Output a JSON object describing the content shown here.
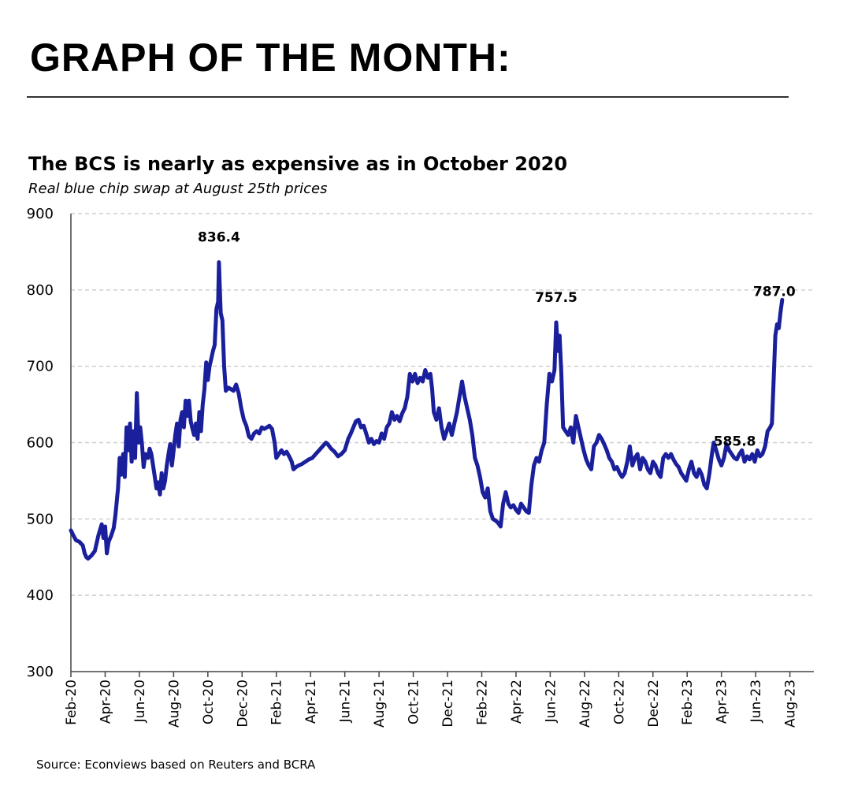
{
  "header": {
    "headline": "GRAPH OF THE MONTH:"
  },
  "chart_data": {
    "type": "line",
    "title": "The BCS is nearly as expensive as in October 2020",
    "subtitle": "Real blue chip swap at August 25th prices",
    "source": "Source: Econviews based on Reuters and BCRA",
    "xlabel": "",
    "ylabel": "",
    "ylim": [
      300,
      900
    ],
    "y_ticks": [
      300,
      400,
      500,
      600,
      700,
      800,
      900
    ],
    "x_tick_labels": [
      "Feb-20",
      "Apr-20",
      "Jun-20",
      "Aug-20",
      "Oct-20",
      "Dec-20",
      "Feb-21",
      "Apr-21",
      "Jun-21",
      "Aug-21",
      "Oct-21",
      "Dec-21",
      "Feb-22",
      "Apr-22",
      "Jun-22",
      "Aug-22",
      "Oct-22",
      "Dec-22",
      "Feb-23",
      "Apr-23",
      "Jun-23",
      "Aug-23"
    ],
    "x_range_months": [
      0,
      43.4
    ],
    "grid": "horizontal dashed",
    "series": [
      {
        "name": "Real blue chip swap",
        "color": "#1a1f9c",
        "points": [
          [
            0.0,
            485
          ],
          [
            0.15,
            478
          ],
          [
            0.3,
            472
          ],
          [
            0.5,
            470
          ],
          [
            0.7,
            465
          ],
          [
            0.8,
            455
          ],
          [
            0.9,
            450
          ],
          [
            1.0,
            448
          ],
          [
            1.2,
            452
          ],
          [
            1.4,
            458
          ],
          [
            1.6,
            478
          ],
          [
            1.8,
            493
          ],
          [
            1.9,
            475
          ],
          [
            2.0,
            490
          ],
          [
            2.1,
            455
          ],
          [
            2.2,
            470
          ],
          [
            2.35,
            478
          ],
          [
            2.5,
            488
          ],
          [
            2.6,
            505
          ],
          [
            2.75,
            540
          ],
          [
            2.85,
            580
          ],
          [
            2.95,
            558
          ],
          [
            3.05,
            585
          ],
          [
            3.15,
            555
          ],
          [
            3.25,
            620
          ],
          [
            3.35,
            590
          ],
          [
            3.45,
            625
          ],
          [
            3.55,
            575
          ],
          [
            3.65,
            615
          ],
          [
            3.75,
            580
          ],
          [
            3.85,
            665
          ],
          [
            3.95,
            600
          ],
          [
            4.05,
            620
          ],
          [
            4.15,
            598
          ],
          [
            4.25,
            568
          ],
          [
            4.35,
            585
          ],
          [
            4.5,
            580
          ],
          [
            4.6,
            592
          ],
          [
            4.7,
            585
          ],
          [
            4.8,
            570
          ],
          [
            4.9,
            555
          ],
          [
            5.0,
            540
          ],
          [
            5.1,
            548
          ],
          [
            5.2,
            532
          ],
          [
            5.3,
            560
          ],
          [
            5.4,
            540
          ],
          [
            5.5,
            550
          ],
          [
            5.6,
            570
          ],
          [
            5.7,
            585
          ],
          [
            5.8,
            598
          ],
          [
            5.9,
            570
          ],
          [
            6.0,
            590
          ],
          [
            6.1,
            610
          ],
          [
            6.2,
            625
          ],
          [
            6.3,
            595
          ],
          [
            6.4,
            630
          ],
          [
            6.5,
            640
          ],
          [
            6.6,
            620
          ],
          [
            6.7,
            655
          ],
          [
            6.8,
            635
          ],
          [
            6.9,
            655
          ],
          [
            7.0,
            628
          ],
          [
            7.1,
            618
          ],
          [
            7.2,
            610
          ],
          [
            7.3,
            625
          ],
          [
            7.4,
            605
          ],
          [
            7.5,
            640
          ],
          [
            7.6,
            615
          ],
          [
            7.7,
            650
          ],
          [
            7.8,
            670
          ],
          [
            7.9,
            705
          ],
          [
            8.0,
            682
          ],
          [
            8.1,
            700
          ],
          [
            8.2,
            710
          ],
          [
            8.3,
            720
          ],
          [
            8.4,
            728
          ],
          [
            8.5,
            775
          ],
          [
            8.6,
            785
          ],
          [
            8.65,
            836.4
          ],
          [
            8.75,
            770
          ],
          [
            8.85,
            760
          ],
          [
            8.95,
            700
          ],
          [
            9.05,
            668
          ],
          [
            9.2,
            672
          ],
          [
            9.35,
            670
          ],
          [
            9.5,
            668
          ],
          [
            9.65,
            676
          ],
          [
            9.8,
            665
          ],
          [
            9.95,
            645
          ],
          [
            10.1,
            630
          ],
          [
            10.25,
            622
          ],
          [
            10.4,
            608
          ],
          [
            10.55,
            605
          ],
          [
            10.7,
            612
          ],
          [
            10.85,
            615
          ],
          [
            11.0,
            612
          ],
          [
            11.15,
            620
          ],
          [
            11.3,
            618
          ],
          [
            11.45,
            620
          ],
          [
            11.6,
            622
          ],
          [
            11.75,
            618
          ],
          [
            11.9,
            600
          ],
          [
            12.0,
            580
          ],
          [
            12.15,
            585
          ],
          [
            12.3,
            590
          ],
          [
            12.45,
            585
          ],
          [
            12.6,
            588
          ],
          [
            12.75,
            582
          ],
          [
            12.9,
            575
          ],
          [
            13.0,
            565
          ],
          [
            13.15,
            568
          ],
          [
            13.3,
            570
          ],
          [
            13.5,
            572
          ],
          [
            13.7,
            575
          ],
          [
            13.9,
            578
          ],
          [
            14.1,
            580
          ],
          [
            14.3,
            585
          ],
          [
            14.5,
            590
          ],
          [
            14.7,
            595
          ],
          [
            14.9,
            600
          ],
          [
            15.0,
            598
          ],
          [
            15.2,
            592
          ],
          [
            15.4,
            588
          ],
          [
            15.6,
            582
          ],
          [
            15.8,
            585
          ],
          [
            16.0,
            590
          ],
          [
            16.2,
            605
          ],
          [
            16.35,
            612
          ],
          [
            16.5,
            620
          ],
          [
            16.65,
            628
          ],
          [
            16.8,
            630
          ],
          [
            16.95,
            620
          ],
          [
            17.1,
            622
          ],
          [
            17.25,
            612
          ],
          [
            17.4,
            600
          ],
          [
            17.55,
            605
          ],
          [
            17.7,
            598
          ],
          [
            17.85,
            602
          ],
          [
            18.0,
            600
          ],
          [
            18.15,
            612
          ],
          [
            18.3,
            605
          ],
          [
            18.45,
            620
          ],
          [
            18.6,
            625
          ],
          [
            18.75,
            640
          ],
          [
            18.9,
            630
          ],
          [
            19.05,
            635
          ],
          [
            19.2,
            628
          ],
          [
            19.35,
            638
          ],
          [
            19.5,
            645
          ],
          [
            19.65,
            660
          ],
          [
            19.8,
            690
          ],
          [
            19.95,
            680
          ],
          [
            20.1,
            690
          ],
          [
            20.25,
            678
          ],
          [
            20.4,
            685
          ],
          [
            20.55,
            680
          ],
          [
            20.7,
            695
          ],
          [
            20.85,
            685
          ],
          [
            21.0,
            690
          ],
          [
            21.1,
            670
          ],
          [
            21.2,
            640
          ],
          [
            21.35,
            630
          ],
          [
            21.5,
            645
          ],
          [
            21.65,
            620
          ],
          [
            21.8,
            605
          ],
          [
            21.95,
            615
          ],
          [
            22.1,
            625
          ],
          [
            22.25,
            610
          ],
          [
            22.4,
            625
          ],
          [
            22.55,
            640
          ],
          [
            22.7,
            660
          ],
          [
            22.85,
            680
          ],
          [
            23.0,
            660
          ],
          [
            23.15,
            645
          ],
          [
            23.3,
            630
          ],
          [
            23.45,
            610
          ],
          [
            23.6,
            580
          ],
          [
            23.75,
            570
          ],
          [
            23.9,
            555
          ],
          [
            24.05,
            535
          ],
          [
            24.2,
            528
          ],
          [
            24.35,
            540
          ],
          [
            24.5,
            510
          ],
          [
            24.65,
            500
          ],
          [
            24.8,
            498
          ],
          [
            24.95,
            495
          ],
          [
            25.1,
            490
          ],
          [
            25.25,
            520
          ],
          [
            25.4,
            535
          ],
          [
            25.55,
            520
          ],
          [
            25.7,
            515
          ],
          [
            25.85,
            518
          ],
          [
            26.0,
            512
          ],
          [
            26.15,
            508
          ],
          [
            26.3,
            520
          ],
          [
            26.45,
            515
          ],
          [
            26.6,
            510
          ],
          [
            26.75,
            508
          ],
          [
            26.9,
            545
          ],
          [
            27.05,
            570
          ],
          [
            27.2,
            580
          ],
          [
            27.35,
            575
          ],
          [
            27.5,
            590
          ],
          [
            27.65,
            600
          ],
          [
            27.8,
            650
          ],
          [
            27.95,
            690
          ],
          [
            28.1,
            680
          ],
          [
            28.25,
            695
          ],
          [
            28.35,
            757.5
          ],
          [
            28.45,
            720
          ],
          [
            28.55,
            740
          ],
          [
            28.65,
            690
          ],
          [
            28.75,
            620
          ],
          [
            28.9,
            615
          ],
          [
            29.05,
            610
          ],
          [
            29.2,
            620
          ],
          [
            29.35,
            600
          ],
          [
            29.5,
            635
          ],
          [
            29.65,
            620
          ],
          [
            29.8,
            605
          ],
          [
            29.95,
            590
          ],
          [
            30.1,
            578
          ],
          [
            30.25,
            570
          ],
          [
            30.4,
            565
          ],
          [
            30.55,
            595
          ],
          [
            30.7,
            600
          ],
          [
            30.85,
            610
          ],
          [
            31.0,
            605
          ],
          [
            31.15,
            598
          ],
          [
            31.3,
            590
          ],
          [
            31.45,
            580
          ],
          [
            31.6,
            575
          ],
          [
            31.75,
            565
          ],
          [
            31.9,
            568
          ],
          [
            32.05,
            560
          ],
          [
            32.2,
            555
          ],
          [
            32.35,
            560
          ],
          [
            32.5,
            575
          ],
          [
            32.65,
            595
          ],
          [
            32.8,
            570
          ],
          [
            32.95,
            580
          ],
          [
            33.1,
            585
          ],
          [
            33.25,
            565
          ],
          [
            33.4,
            580
          ],
          [
            33.55,
            575
          ],
          [
            33.7,
            565
          ],
          [
            33.85,
            560
          ],
          [
            34.0,
            575
          ],
          [
            34.15,
            570
          ],
          [
            34.3,
            560
          ],
          [
            34.45,
            555
          ],
          [
            34.6,
            580
          ],
          [
            34.75,
            585
          ],
          [
            34.9,
            580
          ],
          [
            35.05,
            585
          ],
          [
            35.2,
            578
          ],
          [
            35.35,
            572
          ],
          [
            35.5,
            568
          ],
          [
            35.65,
            560
          ],
          [
            35.8,
            555
          ],
          [
            35.95,
            550
          ],
          [
            36.1,
            565
          ],
          [
            36.25,
            575
          ],
          [
            36.4,
            560
          ],
          [
            36.55,
            555
          ],
          [
            36.7,
            565
          ],
          [
            36.85,
            558
          ],
          [
            37.0,
            545
          ],
          [
            37.15,
            540
          ],
          [
            37.3,
            560
          ],
          [
            37.45,
            585.8
          ],
          [
            37.55,
            600
          ],
          [
            37.7,
            590
          ],
          [
            37.85,
            578
          ],
          [
            38.0,
            570
          ],
          [
            38.15,
            580
          ],
          [
            38.3,
            598
          ],
          [
            38.45,
            590
          ],
          [
            38.6,
            585
          ],
          [
            38.75,
            580
          ],
          [
            38.9,
            578
          ],
          [
            39.05,
            585
          ],
          [
            39.2,
            590
          ],
          [
            39.35,
            575
          ],
          [
            39.5,
            582
          ],
          [
            39.65,
            578
          ],
          [
            39.8,
            585
          ],
          [
            39.95,
            575
          ],
          [
            40.1,
            590
          ],
          [
            40.25,
            582
          ],
          [
            40.4,
            585
          ],
          [
            40.55,
            595
          ],
          [
            40.7,
            615
          ],
          [
            40.85,
            620
          ],
          [
            40.95,
            625
          ],
          [
            41.05,
            680
          ],
          [
            41.15,
            740
          ],
          [
            41.25,
            755
          ],
          [
            41.35,
            750
          ],
          [
            41.45,
            770
          ],
          [
            41.55,
            787.0
          ]
        ]
      }
    ],
    "annotations": [
      {
        "label": "836.4",
        "x": 8.65,
        "y": 836.4
      },
      {
        "label": "757.5",
        "x": 28.35,
        "y": 757.5
      },
      {
        "label": "585.8",
        "x": 37.45,
        "y": 585.8
      },
      {
        "label": "787.0",
        "x": 41.55,
        "y": 787.0
      }
    ]
  }
}
